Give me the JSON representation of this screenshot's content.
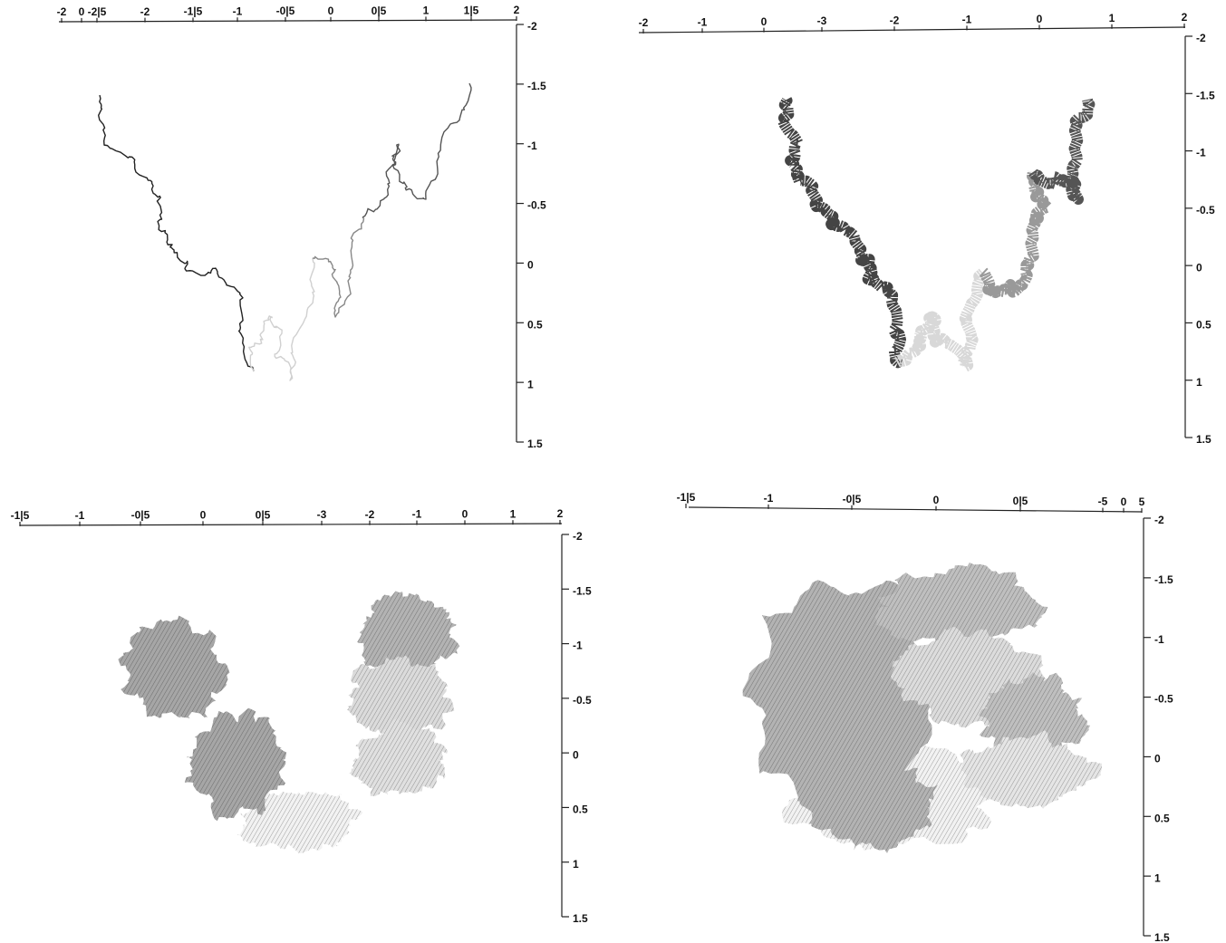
{
  "chart_data": [
    {
      "type": "fractal",
      "x_labels": [
        "-2",
        "0",
        "-2|5",
        "-2",
        "-1|5",
        "-1",
        "-0|5",
        "0",
        "0|5",
        "1",
        "1|5",
        "2"
      ],
      "ylim": [
        -2,
        1.5
      ],
      "yticks": [
        -2,
        -1.5,
        -1,
        -0.5,
        0,
        0.5,
        1,
        1.5
      ]
    },
    {
      "type": "fractal",
      "x_labels": [
        "-2",
        "-1",
        "0",
        "-3",
        "-2",
        "-1",
        "0",
        "1",
        "2"
      ],
      "ylim": [
        -2,
        1.5
      ],
      "yticks": [
        -2,
        -1.5,
        -1,
        -0.5,
        0,
        0.5,
        1,
        1.5
      ]
    },
    {
      "type": "fractal",
      "x_labels": [
        "-1|5",
        "-1",
        "-0|5",
        "0",
        "0|5",
        "-3",
        "-2",
        "-1",
        "0",
        "1",
        "2"
      ],
      "ylim": [
        -2,
        1.5
      ],
      "yticks": [
        -2,
        -1.5,
        -1,
        -0.5,
        0,
        0.5,
        1,
        1.5
      ]
    },
    {
      "type": "fractal",
      "x_labels": [
        "-1|5",
        "-1",
        "-0|5",
        "0",
        "0|5",
        "-5",
        "0",
        "5"
      ],
      "ylim": [
        -2,
        1.5
      ],
      "yticks": [
        -2,
        -1.5,
        -1,
        -0.5,
        0,
        0.5,
        1,
        1.5
      ]
    }
  ]
}
